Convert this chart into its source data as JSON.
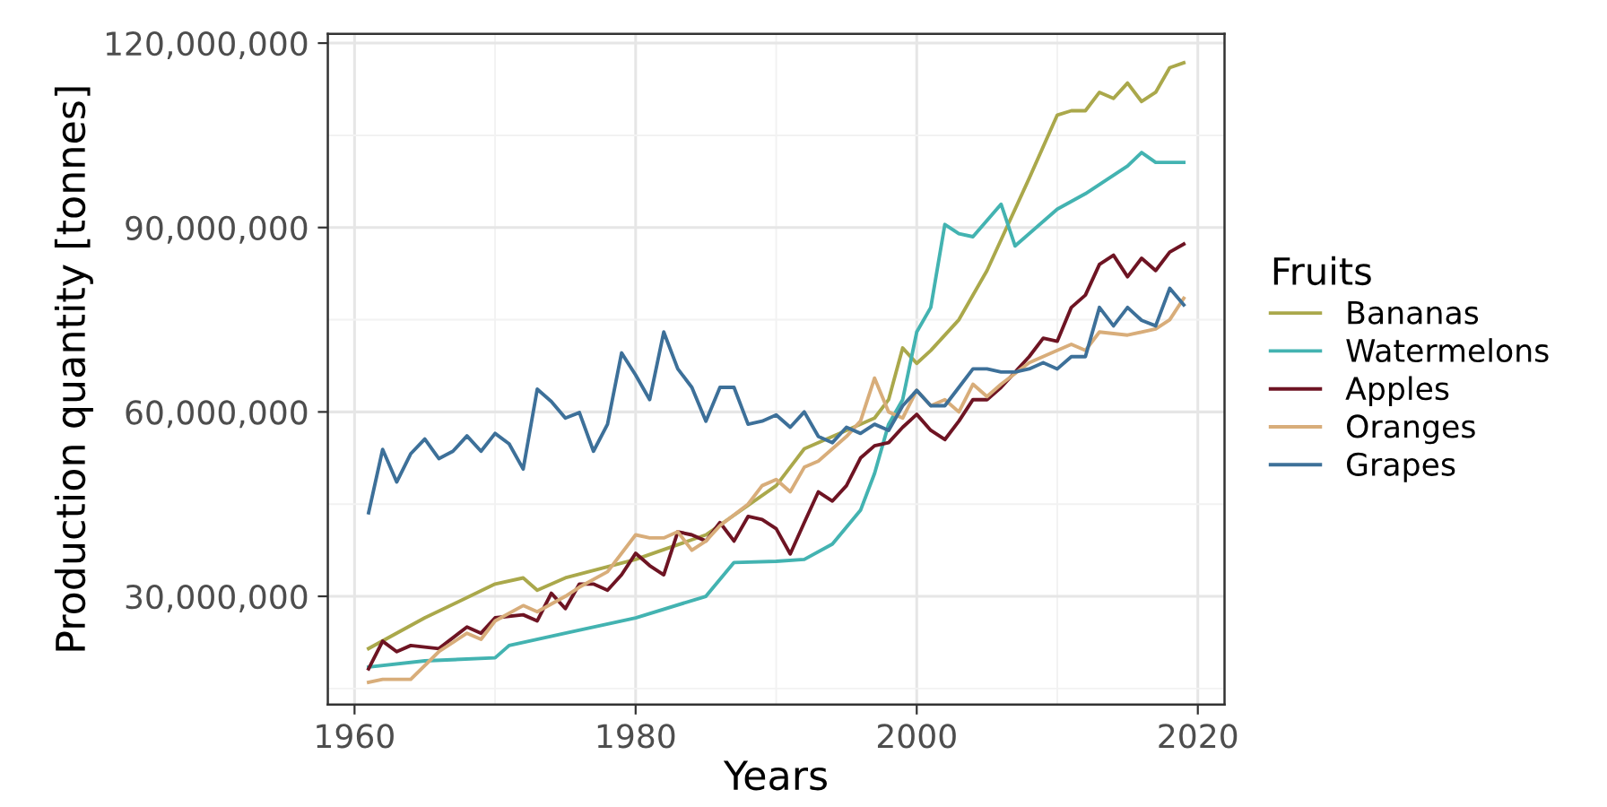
{
  "chart_data": {
    "type": "line",
    "xlabel": "Years",
    "ylabel": "Production quantity [tonnes]",
    "legend_title": "Fruits",
    "legend": "right",
    "grid": true,
    "line_style": "solid",
    "xlim": [
      1958.1,
      2021.9
    ],
    "xticks": [
      1960,
      1980,
      2000,
      2020
    ],
    "ylim": [
      12400000.0,
      121500000.0
    ],
    "yticks": [
      {
        "value": 30000000.0,
        "label": "30,000,000"
      },
      {
        "value": 60000000.0,
        "label": "60,000,000"
      },
      {
        "value": 90000000.0,
        "label": "90,000,000"
      },
      {
        "value": 120000000.0,
        "label": "120,000,000"
      }
    ],
    "series": [
      {
        "name": "Bananas",
        "color": "#aaa84b",
        "x": [
          1961,
          1965,
          1970,
          1972,
          1973,
          1975,
          1980,
          1985,
          1990,
          1992,
          1995,
          1997,
          1998,
          1999,
          2000,
          2001,
          2003,
          2005,
          2008,
          2010,
          2011,
          2012,
          2013,
          2014,
          2015,
          2016,
          2017,
          2018,
          2019
        ],
        "values": [
          21500000.0,
          26500000.0,
          32000000.0,
          33000000.0,
          31000000.0,
          33000000.0,
          36000000.0,
          40000000.0,
          48000000.0,
          54000000.0,
          57000000.0,
          59000000.0,
          62000000.0,
          70400000.0,
          67900000.0,
          70000000.0,
          75000000.0,
          83000000.0,
          98000000.0,
          108300000.0,
          109000000.0,
          109000000.0,
          112000000.0,
          111000000.0,
          113500000.0,
          110500000.0,
          112000000.0,
          116000000.0,
          116800000.0
        ]
      },
      {
        "name": "Watermelons",
        "color": "#43b3b1",
        "x": [
          1961,
          1965,
          1970,
          1971,
          1975,
          1980,
          1985,
          1987,
          1990,
          1992,
          1994,
          1996,
          1997,
          1998,
          1999,
          2000,
          2001,
          2002,
          2003,
          2004,
          2006,
          2007,
          2010,
          2012,
          2015,
          2016,
          2017,
          2019
        ],
        "values": [
          18500000.0,
          19500000.0,
          20000000.0,
          22000000.0,
          24000000.0,
          26500000.0,
          30000000.0,
          35500000.0,
          35700000.0,
          36000000.0,
          38500000.0,
          44000000.0,
          50000000.0,
          58000000.0,
          62000000.0,
          73000000.0,
          77000000.0,
          90500000.0,
          89000000.0,
          88500000.0,
          93800000.0,
          87000000.0,
          93000000.0,
          95500000.0,
          100000000.0,
          102200000.0,
          100600000.0,
          100600000.0
        ]
      },
      {
        "name": "Apples",
        "color": "#6e1423",
        "x": [
          1961,
          1962,
          1963,
          1964,
          1966,
          1968,
          1969,
          1970,
          1972,
          1973,
          1974,
          1975,
          1976,
          1977,
          1978,
          1979,
          1980,
          1981,
          1982,
          1983,
          1984,
          1985,
          1986,
          1987,
          1988,
          1989,
          1990,
          1991,
          1992,
          1993,
          1994,
          1995,
          1996,
          1997,
          1998,
          1999,
          2000,
          2001,
          2002,
          2003,
          2004,
          2005,
          2006,
          2008,
          2009,
          2010,
          2011,
          2012,
          2013,
          2014,
          2015,
          2016,
          2017,
          2018,
          2019
        ],
        "values": [
          18200000.0,
          22700000.0,
          21000000.0,
          22000000.0,
          21500000.0,
          25000000.0,
          24000000.0,
          26500000.0,
          27000000.0,
          26000000.0,
          30500000.0,
          28000000.0,
          32000000.0,
          32000000.0,
          31000000.0,
          33500000.0,
          37000000.0,
          35000000.0,
          33500000.0,
          40500000.0,
          40000000.0,
          39000000.0,
          42000000.0,
          39000000.0,
          43000000.0,
          42500000.0,
          41000000.0,
          36900000.0,
          42000000.0,
          47000000.0,
          45500000.0,
          48000000.0,
          52500000.0,
          54500000.0,
          55000000.0,
          57500000.0,
          59600000.0,
          57000000.0,
          55500000.0,
          58500000.0,
          62000000.0,
          62000000.0,
          64000000.0,
          69000000.0,
          72000000.0,
          71500000.0,
          77000000.0,
          79000000.0,
          84000000.0,
          85500000.0,
          82000000.0,
          85000000.0,
          83000000.0,
          86000000.0,
          87300000.0
        ]
      },
      {
        "name": "Oranges",
        "color": "#d8ad7a",
        "x": [
          1961,
          1962,
          1964,
          1966,
          1968,
          1969,
          1970,
          1972,
          1973,
          1975,
          1976,
          1978,
          1980,
          1981,
          1982,
          1983,
          1984,
          1985,
          1986,
          1988,
          1989,
          1990,
          1991,
          1992,
          1993,
          1995,
          1996,
          1997,
          1998,
          1999,
          2000,
          2001,
          2002,
          2003,
          2004,
          2005,
          2006,
          2008,
          2010,
          2011,
          2012,
          2013,
          2015,
          2017,
          2018,
          2019
        ],
        "values": [
          16000000.0,
          16500000.0,
          16500000.0,
          21000000.0,
          24000000.0,
          23000000.0,
          26000000.0,
          28500000.0,
          27500000.0,
          30000000.0,
          31500000.0,
          34000000.0,
          40000000.0,
          39500000.0,
          39500000.0,
          40500000.0,
          37500000.0,
          39000000.0,
          41500000.0,
          45000000.0,
          48000000.0,
          49000000.0,
          47000000.0,
          51000000.0,
          52000000.0,
          56000000.0,
          58500000.0,
          65500000.0,
          60000000.0,
          59000000.0,
          63500000.0,
          61000000.0,
          62000000.0,
          60000000.0,
          64500000.0,
          62500000.0,
          64500000.0,
          68000000.0,
          70000000.0,
          71000000.0,
          70000000.0,
          73000000.0,
          72500000.0,
          73500000.0,
          75000000.0,
          78500000.0
        ]
      },
      {
        "name": "Grapes",
        "color": "#3d7099",
        "x": [
          1961,
          1962,
          1963,
          1964,
          1965,
          1966,
          1967,
          1968,
          1969,
          1970,
          1971,
          1972,
          1973,
          1974,
          1975,
          1976,
          1977,
          1978,
          1979,
          1980,
          1981,
          1982,
          1983,
          1984,
          1985,
          1986,
          1987,
          1988,
          1989,
          1990,
          1991,
          1992,
          1993,
          1994,
          1995,
          1996,
          1997,
          1998,
          1999,
          2000,
          2001,
          2002,
          2003,
          2004,
          2005,
          2006,
          2007,
          2008,
          2009,
          2010,
          2011,
          2012,
          2013,
          2014,
          2015,
          2016,
          2017,
          2018,
          2019
        ],
        "values": [
          43600000.0,
          53900000.0,
          48600000.0,
          53200000.0,
          55600000.0,
          52400000.0,
          53600000.0,
          56100000.0,
          53600000.0,
          56500000.0,
          54800000.0,
          50700000.0,
          63700000.0,
          61700000.0,
          59000000.0,
          59900000.0,
          53600000.0,
          58000000.0,
          69600000.0,
          66000000.0,
          62000000.0,
          73000000.0,
          67000000.0,
          64000000.0,
          58500000.0,
          64000000.0,
          64000000.0,
          58000000.0,
          58500000.0,
          59500000.0,
          57500000.0,
          60000000.0,
          56000000.0,
          55000000.0,
          57500000.0,
          56500000.0,
          58000000.0,
          57000000.0,
          61000000.0,
          63500000.0,
          61000000.0,
          61000000.0,
          64000000.0,
          67000000.0,
          67000000.0,
          66500000.0,
          66500000.0,
          67000000.0,
          68000000.0,
          67000000.0,
          69000000.0,
          69000000.0,
          77000000.0,
          74000000.0,
          77000000.0,
          74900000.0,
          74000000.0,
          80100000.0,
          77400000.0
        ]
      }
    ]
  }
}
